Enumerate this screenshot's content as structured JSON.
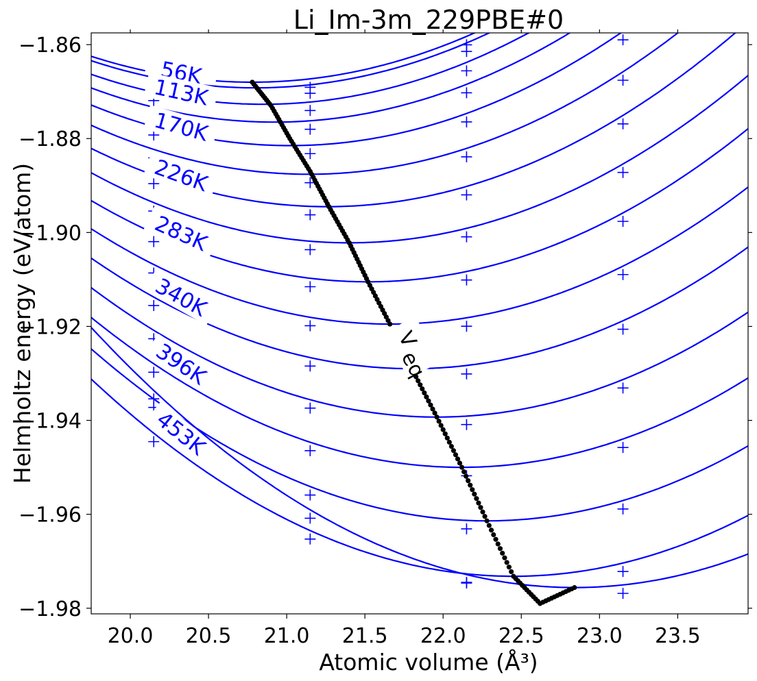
{
  "chart_data": {
    "type": "line",
    "title": "Li_Im-3m_229PBE#0",
    "xlabel": "Atomic volume (Å³)",
    "ylabel": "Helmholtz energy (eV/atom)",
    "xlim": [
      19.75,
      23.95
    ],
    "ylim": [
      -1.9812,
      -1.8575
    ],
    "xticks": [
      {
        "value": 20.0,
        "label": "20.0"
      },
      {
        "value": 20.5,
        "label": "20.5"
      },
      {
        "value": 21.0,
        "label": "21.0"
      },
      {
        "value": 21.5,
        "label": "21.5"
      },
      {
        "value": 22.0,
        "label": "22.0"
      },
      {
        "value": 22.5,
        "label": "22.5"
      },
      {
        "value": 23.0,
        "label": "23.0"
      },
      {
        "value": 23.5,
        "label": "23.5"
      }
    ],
    "yticks": [
      {
        "value": -1.86,
        "label": "−1.86"
      },
      {
        "value": -1.88,
        "label": "−1.88"
      },
      {
        "value": -1.9,
        "label": "−1.90"
      },
      {
        "value": -1.92,
        "label": "−1.92"
      },
      {
        "value": -1.94,
        "label": "−1.94"
      },
      {
        "value": -1.96,
        "label": "−1.96"
      },
      {
        "value": -1.98,
        "label": "−1.98"
      }
    ],
    "grid": false,
    "colors": {
      "curves": "#0000ff",
      "markers": "#0000ff",
      "veq": "#000000"
    },
    "isotherms": [
      {
        "label": "56K",
        "v0": 20.78,
        "fmin": -1.868
      },
      {
        "label": "",
        "v0": 20.8,
        "fmin": -1.8692
      },
      {
        "label": "113K",
        "v0": 20.85,
        "fmin": -1.8727
      },
      {
        "label": "",
        "v0": 20.92,
        "fmin": -1.8765
      },
      {
        "label": "170K",
        "v0": 21.02,
        "fmin": -1.8815
      },
      {
        "label": "",
        "v0": 21.14,
        "fmin": -1.8876
      },
      {
        "label": "226K",
        "v0": 21.26,
        "fmin": -1.8945
      },
      {
        "label": "",
        "v0": 21.4,
        "fmin": -1.9022
      },
      {
        "label": "283K",
        "v0": 21.52,
        "fmin": -1.9105
      },
      {
        "label": "",
        "v0": 21.66,
        "fmin": -1.9195
      },
      {
        "label": "340K",
        "v0": 21.8,
        "fmin": -1.929
      },
      {
        "label": "",
        "v0": 21.96,
        "fmin": -1.9393
      },
      {
        "label": "396K",
        "v0": 22.12,
        "fmin": -1.95
      },
      {
        "label": "",
        "v0": 22.28,
        "fmin": -1.9614
      },
      {
        "label": "453K",
        "v0": 22.45,
        "fmin": -1.9732
      },
      {
        "label": "",
        "v0": 22.84,
        "fmin": -1.9756
      }
    ],
    "marker_x": [
      20.15,
      21.15,
      22.15,
      23.15
    ],
    "veq_label": "V",
    "veq_sub": "eq",
    "veq_points": [
      [
        20.78,
        -1.868
      ],
      [
        20.9,
        -1.873
      ],
      [
        21.02,
        -1.88
      ],
      [
        21.15,
        -1.887
      ],
      [
        21.27,
        -1.8945
      ],
      [
        21.4,
        -1.9022
      ],
      [
        21.52,
        -1.9105
      ],
      [
        21.66,
        -1.9195
      ],
      [
        21.8,
        -1.929
      ],
      [
        21.96,
        -1.9393
      ],
      [
        22.12,
        -1.95
      ],
      [
        22.28,
        -1.9614
      ],
      [
        22.45,
        -1.9732
      ],
      [
        22.62,
        -1.979
      ],
      [
        22.84,
        -1.9756
      ]
    ]
  }
}
